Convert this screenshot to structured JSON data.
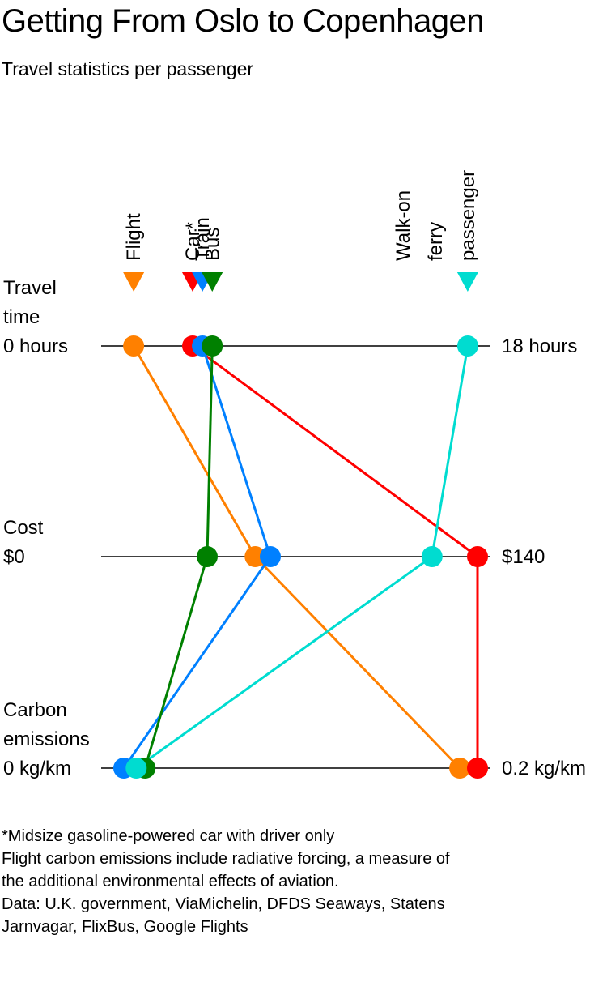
{
  "title": "Getting From Oslo to Copenhagen",
  "subtitle": "Travel statistics per passenger",
  "chart_data": {
    "type": "parallel-coordinates",
    "axes": [
      {
        "key": "time",
        "label_lines": [
          "Travel",
          "time"
        ],
        "min_label": "0 hours",
        "max_label": "18 hours",
        "min": 0,
        "max": 18,
        "unit": "hours"
      },
      {
        "key": "cost",
        "label_lines": [
          "Cost"
        ],
        "min_label": "$0",
        "max_label": "$140",
        "min": 0,
        "max": 140,
        "unit": "USD"
      },
      {
        "key": "carbon",
        "label_lines": [
          "Carbon",
          "emissions"
        ],
        "min_label": "0 kg/km",
        "max_label": "0.2 kg/km",
        "min": 0,
        "max": 0.2,
        "unit": "kg/km"
      }
    ],
    "series": [
      {
        "name": "Flight",
        "label_lines": [
          "Flight"
        ],
        "color": "#ff8000",
        "time": 0.5,
        "cost": 52,
        "carbon": 0.19
      },
      {
        "name": "Car*",
        "label_lines": [
          "Car*"
        ],
        "color": "#ff0000",
        "time": 3.5,
        "cost": 140,
        "carbon": 0.2
      },
      {
        "name": "Train",
        "label_lines": [
          "Train"
        ],
        "color": "#0080ff",
        "time": 4,
        "cost": 58,
        "carbon": 0
      },
      {
        "name": "Bus",
        "label_lines": [
          "Bus"
        ],
        "color": "#008000",
        "time": 4.5,
        "cost": 33,
        "carbon": 0.012
      },
      {
        "name": "Walk-on ferry passenger",
        "label_lines": [
          "Walk-on",
          "ferry",
          "passenger"
        ],
        "color": "#00dcd0",
        "time": 17.5,
        "cost": 122,
        "carbon": 0.007
      }
    ]
  },
  "footnotes": [
    "*Midsize gasoline-powered car with driver only",
    "Flight carbon emissions include radiative forcing, a measure of the additional environmental effects of aviation.",
    "Data: U.K. government, ViaMichelin, DFDS Seaways, Statens Jarnvagar, FlixBus, Google Flights"
  ]
}
